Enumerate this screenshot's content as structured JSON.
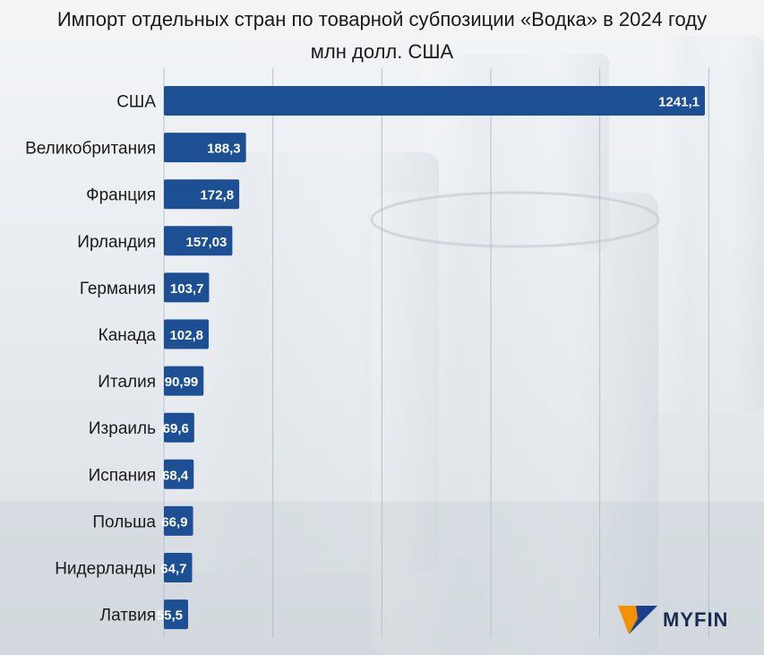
{
  "title": "Импорт отдельных стран по товарной субпозиции «Водка» в 2024 году",
  "subtitle": "млн долл. США",
  "brand": {
    "name": "MYFIN",
    "logo_colors": [
      "#f39200",
      "#1d3f8a"
    ]
  },
  "colors": {
    "bar": "#1d4f94",
    "grid": "#b8bfc6",
    "label": "#1a1a1a",
    "value": "#ffffff"
  },
  "chart_data": {
    "type": "bar",
    "orientation": "horizontal",
    "title": "Импорт отдельных стран по товарной субпозиции «Водка» в 2024 году",
    "subtitle": "млн долл. США",
    "categories": [
      "США",
      "Великобритания",
      "Франция",
      "Ирландия",
      "Германия",
      "Канада",
      "Италия",
      "Израиль",
      "Испания",
      "Польша",
      "Нидерланды",
      "Латвия"
    ],
    "values": [
      1241.1,
      188.3,
      172.8,
      157.03,
      103.7,
      102.8,
      90.99,
      69.6,
      68.4,
      66.9,
      64.7,
      55.5
    ],
    "value_labels": [
      "1241,1",
      "188,3",
      "172,8",
      "157,03",
      "103,7",
      "102,8",
      "90,99",
      "69,6",
      "68,4",
      "66,9",
      "64,7",
      "55,5"
    ],
    "xlim": [
      0,
      1250
    ],
    "grid": true
  }
}
